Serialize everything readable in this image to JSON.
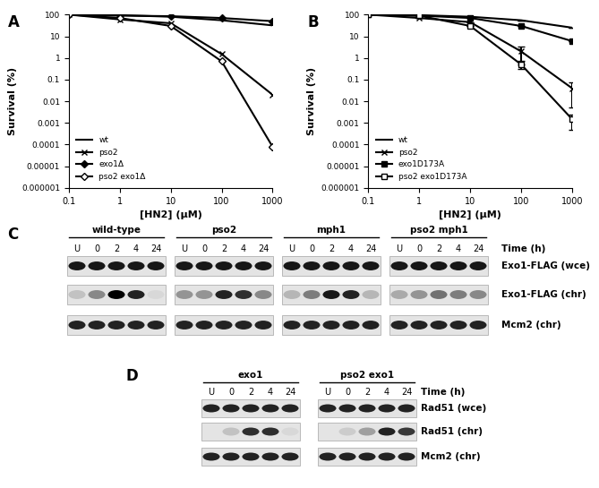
{
  "chart_data": [
    {
      "type": "line",
      "title": "A",
      "x_label": "[HN2] (μM)",
      "y_label": "Survival (%)",
      "x": [
        0.1,
        1,
        10,
        100,
        1000
      ],
      "log": true,
      "grid": false,
      "legend": "lower left",
      "xlim": [
        0.1,
        1000
      ],
      "xticks": [
        0.1,
        1,
        10,
        100,
        1000
      ],
      "ylim": [
        1e-06,
        100
      ],
      "yticks": [
        {
          "value": 1e-06,
          "label": "0.000001"
        },
        {
          "value": 1e-05,
          "label": "0.00001"
        },
        0.0001,
        0.001,
        0.01,
        0.1,
        1,
        10,
        100
      ],
      "series": [
        {
          "name": "wt",
          "color": "#000000",
          "marker": "none",
          "line_style": "solid",
          "values": [
            100,
            95,
            80,
            55,
            32
          ]
        },
        {
          "name": "pso2",
          "color": "#000000",
          "marker": "x",
          "line_style": "solid",
          "values": [
            100,
            60,
            40,
            1.5,
            0.02
          ]
        },
        {
          "name": "exo1Δ",
          "color": "#000000",
          "marker": "diamond",
          "line_style": "solid",
          "values": [
            100,
            90,
            85,
            70,
            50
          ]
        },
        {
          "name": "pso2 exo1Δ",
          "color": "#000000",
          "marker": "open_diamond",
          "line_style": "solid",
          "values": [
            100,
            70,
            30,
            0.7,
            8e-05
          ]
        }
      ]
    },
    {
      "type": "line",
      "title": "B",
      "x_label": "[HN2] (μM)",
      "y_label": "Survival (%)",
      "x": [
        0.1,
        1,
        10,
        100,
        1000
      ],
      "log": true,
      "grid": false,
      "legend": "lower left",
      "xlim": [
        0.1,
        1000
      ],
      "xticks": [
        0.1,
        1,
        10,
        100,
        1000
      ],
      "ylim": [
        1e-06,
        100
      ],
      "yticks": [
        {
          "value": 1e-06,
          "label": "0.000001"
        },
        {
          "value": 1e-05,
          "label": "0.00001"
        },
        0.0001,
        0.001,
        0.01,
        0.1,
        1,
        10,
        100
      ],
      "series": [
        {
          "name": "wt",
          "color": "#000000",
          "marker": "none",
          "line_style": "solid",
          "values": [
            100,
            95,
            80,
            55,
            25
          ],
          "errors": [
            0,
            0,
            0,
            0,
            0
          ]
        },
        {
          "name": "pso2",
          "color": "#000000",
          "marker": "x",
          "line_style": "solid",
          "values": [
            100,
            70,
            45,
            2,
            0.04
          ],
          "errors": [
            0,
            0,
            0,
            1.5,
            0.035
          ]
        },
        {
          "name": "exo1D173A",
          "color": "#000000",
          "marker": "square",
          "line_style": "solid",
          "values": [
            100,
            90,
            70,
            30,
            6
          ],
          "errors": [
            0,
            0,
            0,
            0,
            0
          ]
        },
        {
          "name": "pso2 exo1D173A",
          "color": "#000000",
          "marker": "open_square",
          "line_style": "solid",
          "values": [
            100,
            90,
            30,
            0.5,
            0.0015
          ],
          "errors": [
            0,
            0,
            0,
            0.2,
            0.001
          ]
        }
      ]
    }
  ],
  "blots": [
    {
      "title": "C",
      "time_label": "Time (h)",
      "lanes": [
        "U",
        "0",
        "2",
        "4",
        "24"
      ],
      "groups": [
        "wild-type",
        "pso2",
        "mph1",
        "pso2 mph1"
      ],
      "rows": [
        {
          "label": "Exo1-FLAG (wce)",
          "intensity": [
            [
              0.9,
              0.9,
              0.9,
              0.9,
              0.9
            ],
            [
              0.9,
              0.9,
              0.9,
              0.9,
              0.9
            ],
            [
              0.9,
              0.9,
              0.9,
              0.9,
              0.9
            ],
            [
              0.9,
              0.9,
              0.9,
              0.9,
              0.9
            ]
          ]
        },
        {
          "label": "Exo1-FLAG (chr)",
          "intensity": [
            [
              0.15,
              0.4,
              1.0,
              0.85,
              0.05
            ],
            [
              0.35,
              0.35,
              0.85,
              0.8,
              0.4
            ],
            [
              0.2,
              0.45,
              0.9,
              0.85,
              0.2
            ],
            [
              0.25,
              0.35,
              0.5,
              0.45,
              0.4
            ]
          ]
        },
        {
          "label": "Mcm2 (chr)",
          "intensity": [
            [
              0.85,
              0.85,
              0.85,
              0.85,
              0.85
            ],
            [
              0.85,
              0.85,
              0.85,
              0.85,
              0.85
            ],
            [
              0.85,
              0.85,
              0.85,
              0.85,
              0.85
            ],
            [
              0.85,
              0.85,
              0.85,
              0.85,
              0.85
            ]
          ]
        }
      ]
    },
    {
      "title": "D",
      "time_label": "Time (h)",
      "lanes": [
        "U",
        "0",
        "2",
        "4",
        "24"
      ],
      "groups": [
        "exo1",
        "pso2 exo1"
      ],
      "rows": [
        {
          "label": "Rad51 (wce)",
          "intensity": [
            [
              0.85,
              0.85,
              0.85,
              0.85,
              0.85
            ],
            [
              0.85,
              0.85,
              0.85,
              0.85,
              0.85
            ]
          ]
        },
        {
          "label": "Rad51 (chr)",
          "intensity": [
            [
              0.0,
              0.15,
              0.8,
              0.8,
              0.05
            ],
            [
              0.0,
              0.1,
              0.3,
              0.85,
              0.75
            ]
          ]
        },
        {
          "label": "Mcm2 (chr)",
          "intensity": [
            [
              0.85,
              0.85,
              0.85,
              0.85,
              0.85
            ],
            [
              0.85,
              0.85,
              0.85,
              0.85,
              0.85
            ]
          ]
        }
      ]
    }
  ]
}
